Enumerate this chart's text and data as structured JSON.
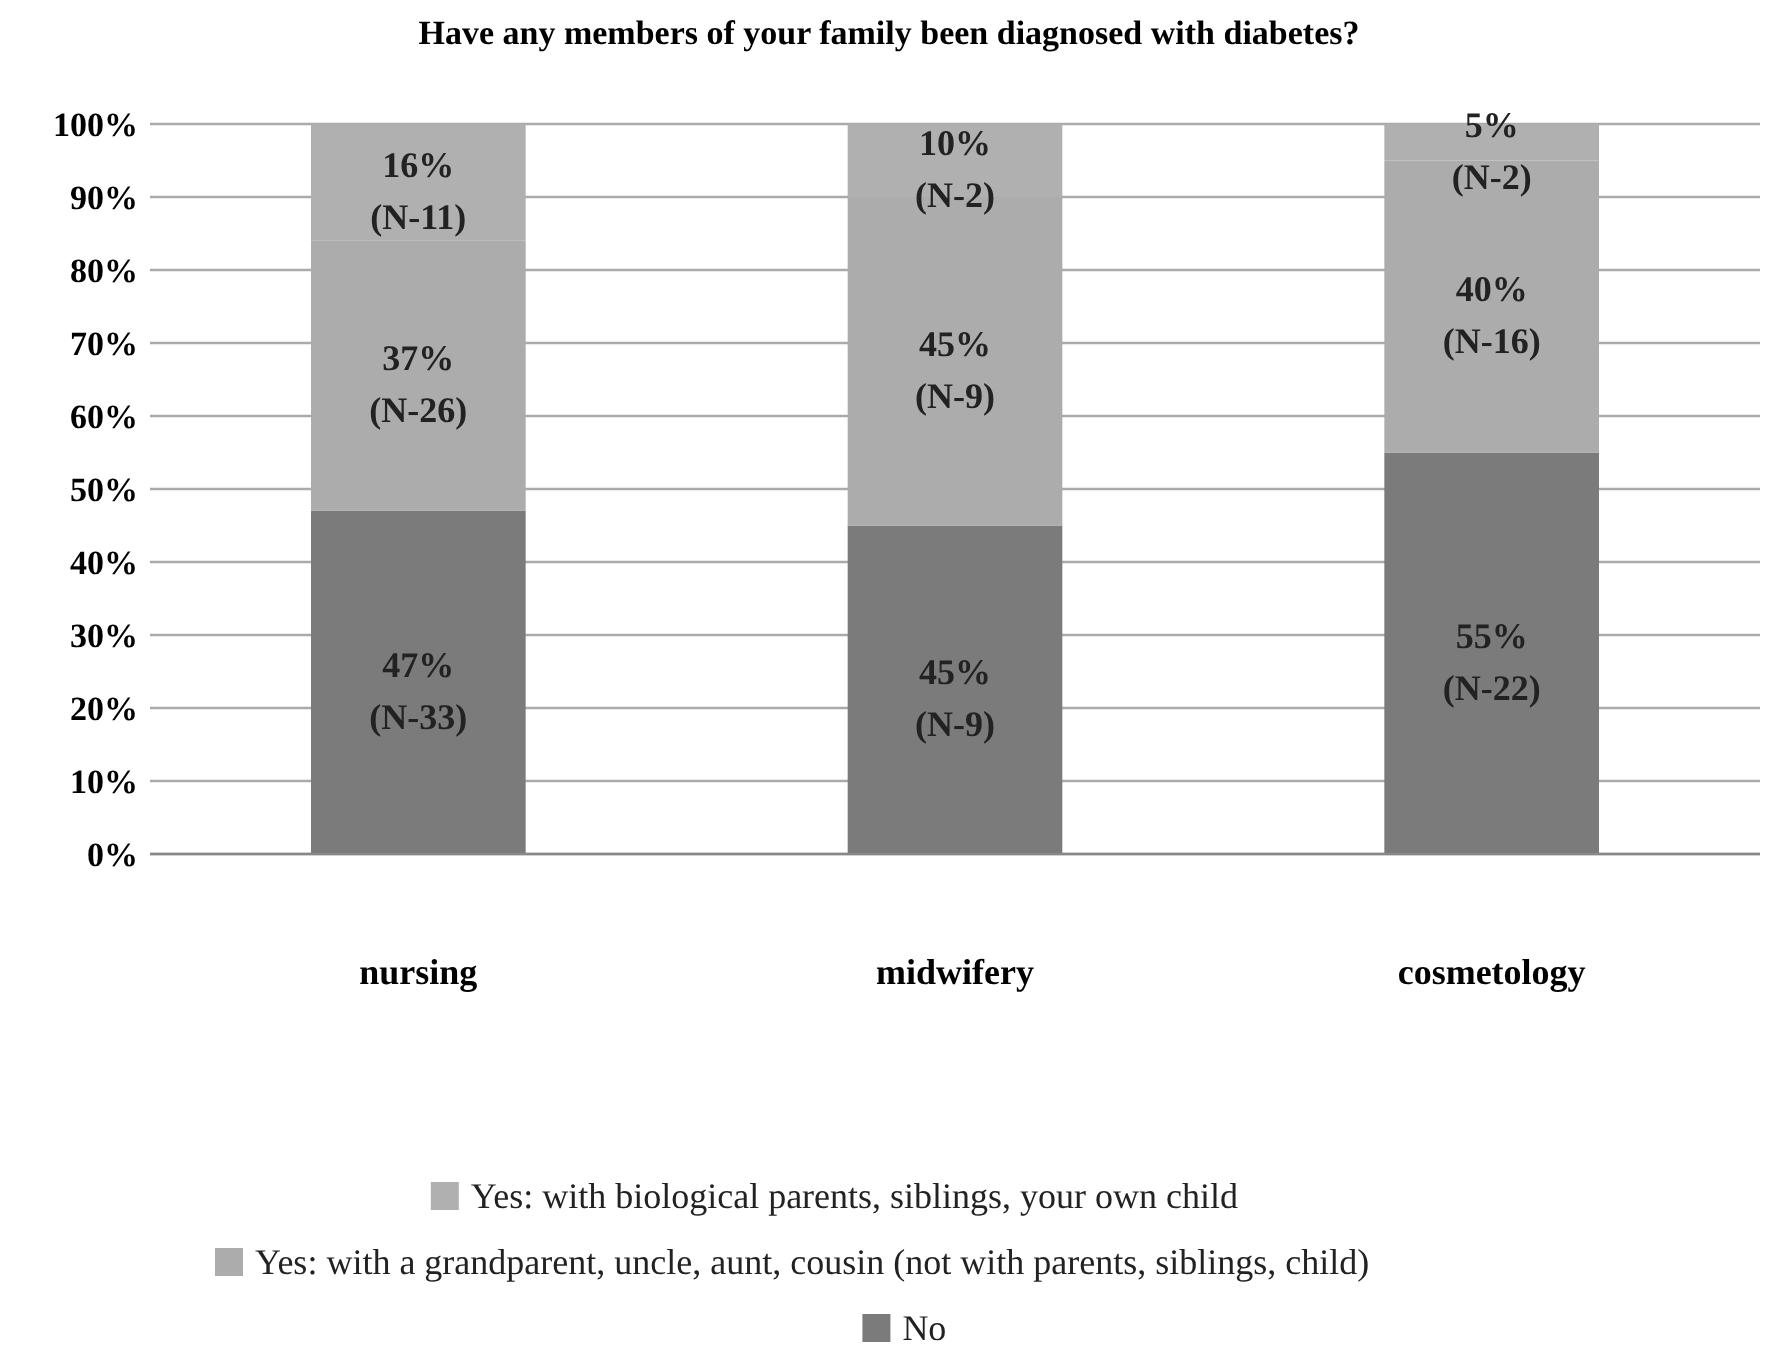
{
  "chart_data": {
    "type": "bar",
    "stacked": true,
    "title": "Have any members of your family been diagnosed with diabetes?",
    "categories": [
      "nursing",
      "midwifery",
      "cosmetology"
    ],
    "series": [
      {
        "name": "No",
        "color": "#7b7b7b",
        "values": [
          47,
          45,
          55
        ],
        "value_labels": [
          "47%\n(N-33)",
          "45%\n(N-9)",
          "55%\n(N-22)"
        ]
      },
      {
        "name": "Yes: with a grandparent, uncle, aunt, cousin (not with parents, siblings, child)",
        "color": "#acacac",
        "values": [
          37,
          45,
          40
        ],
        "value_labels": [
          "37%\n(N-26)",
          "45%\n(N-9)",
          "40%\n(N-16)"
        ]
      },
      {
        "name": "Yes: with biological parents, siblings, your own child",
        "color": "#b0b0b0",
        "values": [
          16,
          10,
          5
        ],
        "value_labels": [
          "16%\n(N-11)",
          "10%\n(N-2)",
          "5%\n(N-2)"
        ]
      }
    ],
    "ylim": [
      0,
      100
    ],
    "yticks": [
      {
        "value": 0,
        "label": "0%"
      },
      {
        "value": 10,
        "label": "10%"
      },
      {
        "value": 20,
        "label": "20%"
      },
      {
        "value": 30,
        "label": "30%"
      },
      {
        "value": 40,
        "label": "40%"
      },
      {
        "value": 50,
        "label": "50%"
      },
      {
        "value": 60,
        "label": "60%"
      },
      {
        "value": 70,
        "label": "70%"
      },
      {
        "value": 80,
        "label": "80%"
      },
      {
        "value": 90,
        "label": "90%"
      },
      {
        "value": 100,
        "label": "100%"
      }
    ],
    "grid": "y",
    "legend": "bottom"
  }
}
